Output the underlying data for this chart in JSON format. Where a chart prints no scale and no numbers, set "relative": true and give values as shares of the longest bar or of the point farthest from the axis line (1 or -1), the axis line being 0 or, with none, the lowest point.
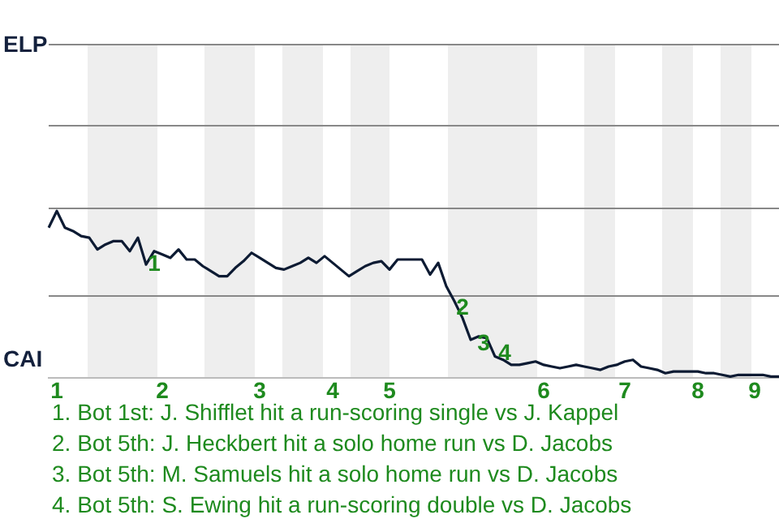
{
  "chart_data": {
    "type": "line",
    "relative": true,
    "categories": [
      null,
      "1",
      null,
      null,
      null,
      null,
      null,
      null,
      null,
      null,
      null,
      null,
      null,
      null,
      "2",
      null,
      null,
      null,
      null,
      null,
      null,
      null,
      null,
      null,
      null,
      null,
      "3",
      null,
      null,
      null,
      null,
      null,
      null,
      null,
      null,
      "4",
      null,
      null,
      null,
      null,
      null,
      null,
      "5",
      null,
      null,
      null,
      null,
      null,
      null,
      null,
      null,
      null,
      null,
      null,
      null,
      null,
      null,
      null,
      null,
      null,
      null,
      "6",
      null,
      null,
      null,
      null,
      null,
      null,
      null,
      null,
      null,
      "7",
      null,
      null,
      null,
      null,
      null,
      null,
      null,
      null,
      "8",
      null,
      null,
      null,
      null,
      null,
      null,
      "9",
      null,
      null,
      null
    ],
    "series": [
      {
        "color": "#0d1b33",
        "values": [
          0.9,
          1,
          0.9,
          0.88,
          0.85,
          0.84,
          0.77,
          0.8,
          0.82,
          0.82,
          0.76,
          0.84,
          0.68,
          0.76,
          0.74,
          0.72,
          0.77,
          0.71,
          0.71,
          0.67,
          0.64,
          0.61,
          0.61,
          0.66,
          0.7,
          0.75,
          0.72,
          0.69,
          0.66,
          0.65,
          0.67,
          0.69,
          0.72,
          0.69,
          0.73,
          0.69,
          0.65,
          0.61,
          0.64,
          0.67,
          0.69,
          0.7,
          0.65,
          0.71,
          0.71,
          0.71,
          0.71,
          0.62,
          0.69,
          0.55,
          0.46,
          0.36,
          0.23,
          0.25,
          0.24,
          0.13,
          0.11,
          0.08,
          0.08,
          0.09,
          0.1,
          0.08,
          0.07,
          0.06,
          0.07,
          0.08,
          0.07,
          0.06,
          0.05,
          0.07,
          0.08,
          0.1,
          0.11,
          0.07,
          0.06,
          0.05,
          0.03,
          0.04,
          0.04,
          0.04,
          0.04,
          0.03,
          0.03,
          0.02,
          0.01,
          0.02,
          0.02,
          0.02,
          0.02,
          0.01,
          0.01
        ]
      }
    ],
    "legend": false,
    "ref_lines": [
      {
        "axis": "y",
        "value": 0.5,
        "color": "#888888"
      }
    ],
    "marker": "none",
    "annotations": [
      "ELP",
      "CAI",
      "1",
      "2",
      "3",
      "4",
      "1. Bot 1st: J. Shifflet hit a run-scoring single vs J. Kappel",
      "2. Bot 5th: J. Heckbert hit a solo home run vs D. Jacobs",
      "3. Bot 5th: M. Samuels hit a solo home run vs D. Jacobs",
      "4. Bot 5th: S. Ewing hit a run-scoring double vs D. Jacobs"
    ]
  }
}
